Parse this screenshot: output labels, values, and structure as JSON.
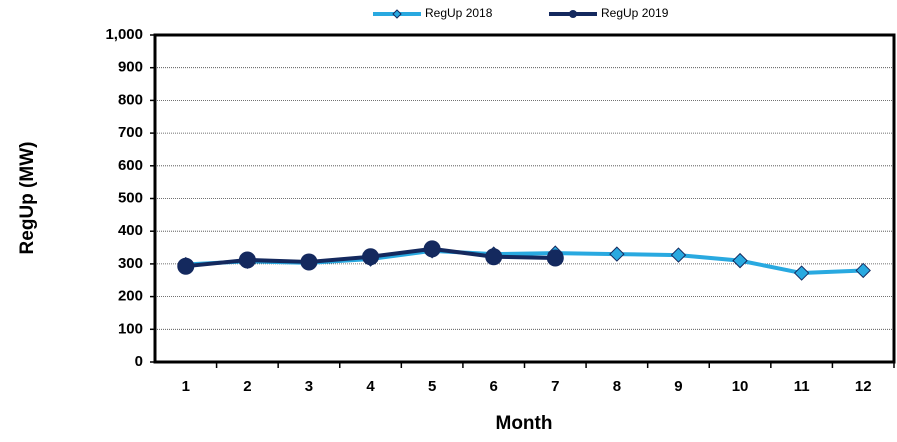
{
  "chart_data": {
    "type": "line",
    "x_label": "Month",
    "y_label": "RegUp (MW)",
    "categories": [
      "1",
      "2",
      "3",
      "4",
      "5",
      "6",
      "7",
      "8",
      "9",
      "10",
      "11",
      "12"
    ],
    "series": [
      {
        "name": "RegUp 2018",
        "color": "#29a9e0",
        "marker": "diamond",
        "values": [
          298,
          308,
          303,
          315,
          340,
          330,
          333,
          330,
          327,
          310,
          272,
          280
        ]
      },
      {
        "name": "RegUp 2019",
        "color": "#14295e",
        "marker": "circle",
        "values": [
          293,
          312,
          306,
          322,
          346,
          322,
          318,
          null,
          null,
          null,
          null,
          null
        ]
      }
    ],
    "ylim": [
      0,
      1000
    ],
    "yticks": [
      0,
      100,
      200,
      300,
      400,
      500,
      600,
      700,
      800,
      900,
      {
        "value": 1000,
        "label": "1,000"
      }
    ],
    "grid": true,
    "legend": "top"
  }
}
